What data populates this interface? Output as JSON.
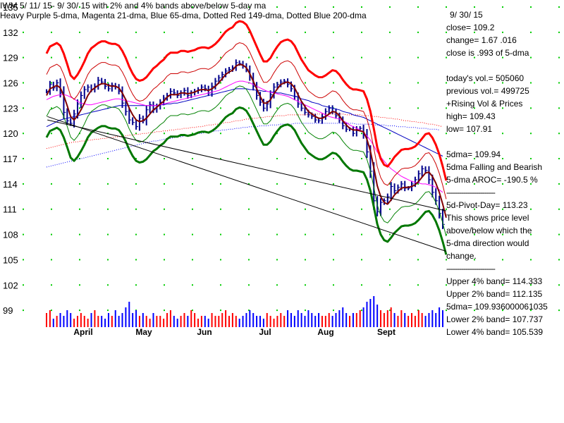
{
  "header": {
    "line1": "IWM  5/ 11/ 15- 9/ 30/ 15 with  2% and 4% bands above/below 5-day ma",
    "line2": "Heavy Purple 5-dma, Magenta 21-dma, Blue 65-dma, Dotted Red 149-dma, Dotted Blue 200-dma"
  },
  "stats": [
    {
      "text": "9/ 30/ 15"
    },
    {
      "text": "close=  109.2"
    },
    {
      "text": "change=  1.67   .016"
    },
    {
      "text": "close is  .993  of 5-dma"
    },
    {
      "text": ""
    },
    {
      "text": "today's vol.=  505060"
    },
    {
      "text": "previous vol.=  499725"
    },
    {
      "text": "+Rising Vol & Prices"
    },
    {
      "text": "high=  109.43"
    },
    {
      "text": "low=  107.91"
    },
    {
      "text": ""
    },
    {
      "text": "5dma=  109.94"
    },
    {
      "text": "5dma Falling and Bearish"
    },
    {
      "text": "5-dma AROC=  -190.5  %"
    },
    {
      "text": "-----------------------",
      "sep": true
    },
    {
      "text": "5d-Pivot-Day=  113.23"
    },
    {
      "text": "This shows price level"
    },
    {
      "text": "above/below which the"
    },
    {
      "text": "5-dma direction would"
    },
    {
      "text": "change."
    },
    {
      "text": "-----------------------",
      "sep": true
    },
    {
      "text": "Upper  4% band=  114.333"
    },
    {
      "text": "Upper  2% band=  112.135"
    },
    {
      "text": "5dma=  109.936000061035"
    },
    {
      "text": "Lower  2% band=  107.737"
    },
    {
      "text": "Lower  4% band=  105.539"
    }
  ],
  "chart_data": {
    "type": "bar",
    "ylim": [
      97,
      135
    ],
    "y_ticks": [
      "99",
      "102",
      "105",
      "108",
      "111",
      "114",
      "117",
      "120",
      "123",
      "126",
      "129",
      "132",
      "135"
    ],
    "month_labels": [
      "April",
      "May",
      "Jun",
      "Jul",
      "Aug",
      "Sept"
    ],
    "grid": "dotted-green",
    "colors": {
      "ohlc": "#00008b",
      "sma5": "#800000",
      "band4": "#ff0000",
      "band2": "#cc0000",
      "lower2": "#008000",
      "lower4": "#007700",
      "ma21": "#ff00ff",
      "ma65": "#0000c0",
      "ma149": "#ff0000",
      "ma200": "#0000ff",
      "trend": "#000000",
      "vol_up": "#ff0000",
      "vol_down": "#0000ff"
    },
    "series": [
      {
        "key": "close",
        "values": [
          125,
          125.8,
          125.4,
          126,
          124.8,
          122.5,
          121.5,
          121.2,
          122.3,
          123.5,
          124.5,
          125.2,
          125.5,
          125.2,
          125.6,
          126.3,
          126.1,
          125.6,
          125.3,
          125.7,
          125.5,
          125,
          123.6,
          122.6,
          121.6,
          121.3,
          120.8,
          121.8,
          121.5,
          122.8,
          123.4,
          122.8,
          123.2,
          123.7,
          124.2,
          124.5,
          125,
          124.8,
          124.5,
          124.8,
          125.1,
          124.5,
          124.8,
          125,
          125.2,
          125.5,
          125.3,
          124.8,
          125.6,
          126.2,
          126.6,
          127,
          127.4,
          127.6,
          127.8,
          128.4,
          128.3,
          128,
          127.6,
          126.7,
          125.6,
          124.5,
          123.7,
          123,
          123.5,
          124.6,
          125.5,
          125.8,
          126.1,
          126.2,
          125.8,
          125.3,
          124.4,
          123.5,
          123,
          122.5,
          122.2,
          122,
          121.6,
          121.5,
          122,
          122.6,
          123,
          122.6,
          122.1,
          121.6,
          120.9,
          120.5,
          120.5,
          120,
          120.5,
          120.6,
          119.8,
          117.8,
          115.5,
          112,
          110.7,
          111.8,
          112,
          112.5,
          113.7,
          113.2,
          113.6,
          114,
          113.5,
          113.5,
          114,
          114.5,
          115.2,
          115.8,
          115.6,
          114.5,
          113,
          112,
          110.5,
          109.2
        ]
      },
      {
        "key": "sma5",
        "values": [
          124.5,
          125.3,
          125.5,
          125.7,
          125.4,
          124.5,
          123.3,
          122,
          121.6,
          122.1,
          122.8,
          123.6,
          124.5,
          125.1,
          125.4,
          125.7,
          125.9,
          125.9,
          125.7,
          125.6,
          125.6,
          125.4,
          124.8,
          124,
          123,
          122.2,
          121.6,
          121.4,
          121.5,
          121.8,
          122.3,
          122.8,
          123.1,
          123.5,
          123.8,
          124.3,
          124.6,
          124.6,
          124.6,
          124.8,
          124.8,
          124.7,
          124.8,
          124.9,
          125.1,
          125.2,
          125.2,
          125.1,
          125.3,
          125.6,
          126,
          126.5,
          127,
          127.3,
          127.5,
          128,
          128.2,
          128.1,
          127.8,
          127.1,
          126.2,
          125.3,
          124.4,
          123.6,
          123.6,
          124,
          124.7,
          125.3,
          125.8,
          126,
          126.1,
          125.9,
          125.4,
          124.6,
          123.8,
          123.2,
          122.6,
          122.3,
          122,
          121.8,
          121.8,
          122,
          122.3,
          122.6,
          122.5,
          122.1,
          121.5,
          121,
          120.6,
          120.4,
          120.4,
          120.3,
          120.2,
          119.3,
          117.9,
          115.9,
          113.8,
          112.5,
          111.8,
          111.6,
          112.1,
          112.7,
          113.1,
          113.5,
          113.6,
          113.6,
          113.7,
          113.9,
          114.3,
          114.8,
          115.3,
          115.4,
          114.9,
          114.1,
          113,
          111.6,
          110
        ]
      },
      {
        "key": "ma21",
        "values": [
          124,
          124.2,
          124.4,
          124.5,
          124.6,
          124.6,
          124.5,
          124.3,
          124.1,
          123.8,
          123.6,
          123.5,
          123.4,
          123.4,
          123.5,
          123.6,
          123.7,
          123.8,
          123.9,
          124,
          124.1,
          124.1,
          124,
          123.9,
          123.8,
          123.7,
          123.6,
          123.5,
          123.4,
          123.3,
          123.3,
          123.3,
          123.3,
          123.4,
          123.5,
          123.6,
          123.7,
          123.8,
          123.9,
          124,
          124.1,
          124.2,
          124.3,
          124.4,
          124.5,
          124.6,
          124.7,
          124.8,
          124.9,
          125,
          125.1,
          125.3,
          125.5,
          125.7,
          125.9,
          126.1,
          126.2,
          126.2,
          126.1,
          126,
          125.8,
          125.6,
          125.4,
          125.2,
          125,
          124.9,
          124.8,
          124.7,
          124.6,
          124.5,
          124.4,
          124.2,
          124,
          123.8,
          123.6,
          123.4,
          123.2,
          123,
          122.8,
          122.6,
          122.4,
          122.2,
          122,
          121.9,
          121.8,
          121.7,
          121.5,
          121.3,
          121,
          120.8,
          120.6,
          120.4,
          120.1,
          119.7,
          119.2,
          118.5,
          117.8,
          117.2,
          116.7,
          116.2,
          115.8,
          115.5,
          115.2,
          114.9,
          114.7,
          114.5,
          114.3,
          114.2,
          114.1,
          114,
          114,
          113.9,
          113.8,
          113.6,
          113.3,
          113
        ]
      },
      {
        "key": "ma65",
        "values": [
          120.8,
          121,
          121.2,
          121.4,
          121.6,
          121.7,
          121.8,
          121.9,
          122,
          122.1,
          122.2,
          122.3,
          122.4,
          122.5,
          122.6,
          122.7,
          122.8,
          122.9,
          123,
          123.1,
          123.2,
          123.3,
          123.3,
          123.3,
          123.3,
          123.3,
          123.3,
          123.3,
          123.3,
          123.3,
          123.3,
          123.3,
          123.3,
          123.4,
          123.4,
          123.5,
          123.5,
          123.6,
          123.6,
          123.7,
          123.8,
          123.9,
          124,
          124.1,
          124.2,
          124.3,
          124.4,
          124.5,
          124.6,
          124.7,
          124.8,
          124.9,
          125,
          125.1,
          125.2,
          125.3,
          125.3,
          125.3,
          125.3,
          125.2,
          125.2,
          125.1,
          125.1,
          125,
          125,
          124.9,
          124.9,
          124.8,
          124.8,
          124.7,
          124.6,
          124.5,
          124.4,
          124.3,
          124.1,
          124,
          123.9,
          123.7,
          123.6,
          123.5,
          123.3,
          123.2,
          123.1,
          123,
          122.9,
          122.8,
          122.6,
          122.5,
          122.4,
          122.2,
          122.1,
          122,
          121.9,
          121.7,
          121.5,
          121.3,
          121.1,
          120.9,
          120.7,
          120.5,
          120.3,
          120.1,
          119.9,
          119.7,
          119.5,
          119.3,
          119.1,
          118.9,
          118.7,
          118.5,
          118.3,
          118.1,
          117.9,
          117.7,
          117.5,
          117.3
        ]
      },
      {
        "key": "ma149",
        "values": [
          118.2,
          118.3,
          118.4,
          118.5,
          118.6,
          118.7,
          118.8,
          118.9,
          119,
          119,
          119.1,
          119.1,
          119.2,
          119.2,
          119.3,
          119.3,
          119.4,
          119.4,
          119.5,
          119.5,
          119.6,
          119.6,
          119.7,
          119.7,
          119.8,
          119.8,
          119.9,
          119.9,
          120,
          120,
          120.1,
          120.1,
          120.2,
          120.2,
          120.3,
          120.3,
          120.4,
          120.4,
          120.5,
          120.5,
          120.6,
          120.6,
          120.7,
          120.7,
          120.8,
          120.8,
          120.9,
          121,
          121,
          121.1,
          121.1,
          121.2,
          121.3,
          121.3,
          121.4,
          121.5,
          121.5,
          121.6,
          121.7,
          121.7,
          121.8,
          121.8,
          121.9,
          121.9,
          122,
          122,
          122,
          122.1,
          122.1,
          122.1,
          122.2,
          122.2,
          122.2,
          122.2,
          122.2,
          122.2,
          122.3,
          122.3,
          122.3,
          122.3,
          122.3,
          122.3,
          122.3,
          122.3,
          122.3,
          122.3,
          122.3,
          122.2,
          122.2,
          122.2,
          122.2,
          122.2,
          122.1,
          122.1,
          122.1,
          122,
          122,
          121.9,
          121.9,
          121.8,
          121.8,
          121.7,
          121.7,
          121.6,
          121.5,
          121.5,
          121.4,
          121.4,
          121.3,
          121.3,
          121.2,
          121.1,
          121.1,
          121,
          120.9,
          120.8
        ]
      },
      {
        "key": "ma200",
        "values": [
          116,
          116.1,
          116.2,
          116.3,
          116.4,
          116.5,
          116.6,
          116.7,
          116.8,
          116.9,
          117,
          117.1,
          117.2,
          117.3,
          117.4,
          117.5,
          117.6,
          117.7,
          117.8,
          117.9,
          118,
          118.1,
          118.2,
          118.3,
          118.4,
          118.5,
          118.6,
          118.7,
          118.8,
          118.9,
          119,
          119.1,
          119.1,
          119.2,
          119.3,
          119.4,
          119.4,
          119.5,
          119.6,
          119.6,
          119.7,
          119.8,
          119.8,
          119.9,
          120,
          120,
          120.1,
          120.2,
          120.2,
          120.3,
          120.3,
          120.4,
          120.4,
          120.5,
          120.5,
          120.6,
          120.6,
          120.7,
          120.7,
          120.8,
          120.8,
          120.8,
          120.9,
          120.9,
          120.9,
          121,
          121,
          121,
          121.1,
          121.1,
          121.1,
          121.1,
          121.2,
          121.2,
          121.2,
          121.2,
          121.2,
          121.2,
          121.2,
          121.2,
          121.2,
          121.2,
          121.2,
          121.2,
          121.2,
          121.2,
          121.2,
          121.2,
          121.2,
          121.2,
          121.1,
          121.1,
          121.1,
          121.1,
          121.1,
          121,
          121,
          121,
          121,
          120.9,
          120.9,
          120.9,
          120.8,
          120.8,
          120.8,
          120.7,
          120.7,
          120.7,
          120.6,
          120.6,
          120.6,
          120.5,
          120.5,
          120.5,
          120.4
        ]
      },
      {
        "key": "volume",
        "values": [
          5,
          6,
          3,
          4,
          5,
          4,
          6,
          5,
          3,
          4,
          5,
          4,
          3,
          5,
          6,
          4,
          4,
          3,
          5,
          4,
          6,
          4,
          5,
          7,
          9,
          5,
          6,
          4,
          5,
          4,
          3,
          5,
          4,
          4,
          3,
          5,
          6,
          4,
          3,
          4,
          5,
          4,
          6,
          5,
          3,
          4,
          4,
          3,
          5,
          4,
          4,
          5,
          6,
          4,
          5,
          4,
          3,
          4,
          5,
          6,
          5,
          4,
          4,
          3,
          5,
          4,
          3,
          4,
          5,
          4,
          6,
          5,
          4,
          6,
          5,
          4,
          6,
          5,
          4,
          5,
          4,
          4,
          5,
          4,
          5,
          6,
          7,
          5,
          4,
          5,
          5,
          6,
          7,
          9,
          10,
          11,
          8,
          6,
          5,
          6,
          7,
          5,
          4,
          6,
          5,
          4,
          5,
          4,
          6,
          5,
          4,
          5,
          6,
          5,
          7,
          6
        ]
      }
    ],
    "trend_lines": [
      {
        "x": [
          0.25,
          116
        ],
        "y": [
          122,
          106
        ]
      },
      {
        "x": [
          0.25,
          116
        ],
        "y": [
          121.6,
          110.8
        ]
      }
    ]
  }
}
